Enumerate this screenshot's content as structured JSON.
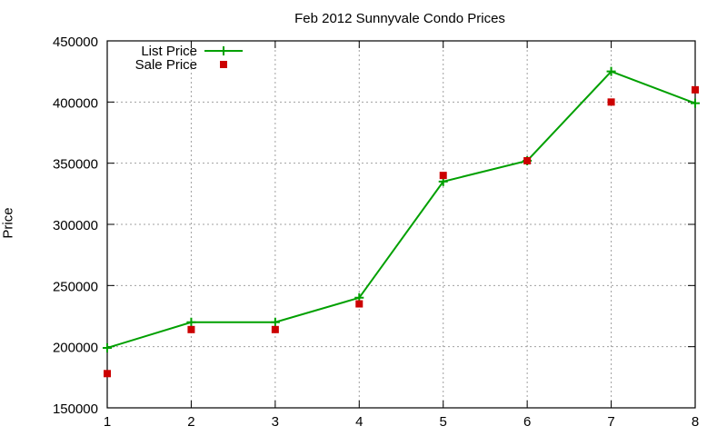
{
  "chart_data": {
    "type": "line",
    "title": "Feb 2012 Sunnyvale Condo Prices",
    "xlabel": "",
    "ylabel": "Price",
    "x": [
      1,
      2,
      3,
      4,
      5,
      6,
      7,
      8
    ],
    "xlim": [
      1,
      8
    ],
    "ylim": [
      150000,
      450000
    ],
    "xticks": [
      "1",
      "2",
      "3",
      "4",
      "5",
      "6",
      "7",
      "8"
    ],
    "yticks": [
      "150000",
      "200000",
      "250000",
      "300000",
      "350000",
      "400000",
      "450000"
    ],
    "grid": true,
    "legend_position": "top-left",
    "series": [
      {
        "name": "List Price",
        "style": "linespoints",
        "marker": "plus",
        "color": "#00a000",
        "values": [
          199000,
          220000,
          220000,
          240000,
          335000,
          352000,
          425000,
          399000
        ]
      },
      {
        "name": "Sale Price",
        "style": "points",
        "marker": "square",
        "color": "#cc0000",
        "values": [
          178000,
          214000,
          214000,
          235000,
          340000,
          352000,
          400000,
          410000
        ]
      }
    ]
  },
  "labels": {
    "title": "Feb 2012 Sunnyvale Condo Prices",
    "ylabel": "Price"
  }
}
